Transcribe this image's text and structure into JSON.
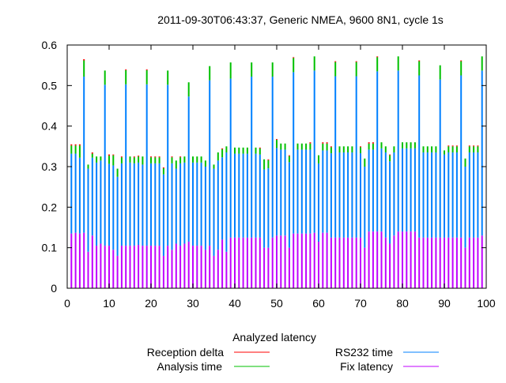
{
  "chart_data": {
    "type": "bar",
    "stacked": true,
    "title": "2011-09-30T06:43:37, Generic NMEA, 9600 8N1, cycle 1s",
    "xlabel": "",
    "ylabel": "",
    "xlim": [
      0,
      100
    ],
    "ylim": [
      0,
      0.6
    ],
    "x_ticks": [
      "0",
      "10",
      "20",
      "30",
      "40",
      "50",
      "60",
      "70",
      "80",
      "90",
      "100"
    ],
    "y_ticks": [
      "0",
      "0.1",
      "0.2",
      "0.3",
      "0.4",
      "0.5",
      "0.6"
    ],
    "grid": false,
    "legend_title": "Analyzed latency",
    "legend_placement": "bottom",
    "x": [
      1,
      2,
      3,
      4,
      5,
      6,
      7,
      8,
      9,
      10,
      11,
      12,
      13,
      14,
      15,
      16,
      17,
      18,
      19,
      20,
      21,
      22,
      23,
      24,
      25,
      26,
      27,
      28,
      29,
      30,
      31,
      32,
      33,
      34,
      35,
      36,
      37,
      38,
      39,
      40,
      41,
      42,
      43,
      44,
      45,
      46,
      47,
      48,
      49,
      50,
      51,
      52,
      53,
      54,
      55,
      56,
      57,
      58,
      59,
      60,
      61,
      62,
      63,
      64,
      65,
      66,
      67,
      68,
      69,
      70,
      71,
      72,
      73,
      74,
      75,
      76,
      77,
      78,
      79,
      80,
      81,
      82,
      83,
      84,
      85,
      86,
      87,
      88,
      89,
      90,
      91,
      92,
      93,
      94,
      95,
      96,
      97,
      98,
      99
    ],
    "series": [
      {
        "name": "Fix latency",
        "color": "#c000ff",
        "values": [
          0.135,
          0.137,
          0.135,
          0.137,
          0.09,
          0.13,
          0.105,
          0.11,
          0.105,
          0.105,
          0.095,
          0.08,
          0.105,
          0.105,
          0.105,
          0.105,
          0.107,
          0.105,
          0.105,
          0.105,
          0.105,
          0.105,
          0.08,
          0.105,
          0.095,
          0.11,
          0.105,
          0.11,
          0.115,
          0.105,
          0.105,
          0.105,
          0.095,
          0.105,
          0.08,
          0.095,
          0.12,
          0.09,
          0.125,
          0.125,
          0.125,
          0.125,
          0.125,
          0.125,
          0.125,
          0.125,
          0.1,
          0.1,
          0.125,
          0.13,
          0.13,
          0.13,
          0.1,
          0.135,
          0.135,
          0.135,
          0.135,
          0.135,
          0.137,
          0.115,
          0.137,
          0.137,
          0.125,
          0.125,
          0.125,
          0.125,
          0.125,
          0.125,
          0.125,
          0.125,
          0.1,
          0.14,
          0.14,
          0.14,
          0.14,
          0.125,
          0.11,
          0.13,
          0.14,
          0.14,
          0.14,
          0.14,
          0.14,
          0.125,
          0.125,
          0.125,
          0.125,
          0.125,
          0.125,
          0.125,
          0.125,
          0.125,
          0.125,
          0.125,
          0.1,
          0.125,
          0.125,
          0.125,
          0.13
        ]
      },
      {
        "name": "RS232 time",
        "color": "#0080ff",
        "values": [
          0.197,
          0.195,
          0.187,
          0.385,
          0.205,
          0.192,
          0.205,
          0.205,
          0.397,
          0.202,
          0.208,
          0.195,
          0.203,
          0.398,
          0.205,
          0.203,
          0.203,
          0.2,
          0.398,
          0.203,
          0.203,
          0.203,
          0.201,
          0.397,
          0.213,
          0.185,
          0.203,
          0.2,
          0.358,
          0.205,
          0.205,
          0.205,
          0.205,
          0.408,
          0.215,
          0.22,
          0.203,
          0.245,
          0.392,
          0.207,
          0.207,
          0.207,
          0.207,
          0.397,
          0.207,
          0.205,
          0.193,
          0.196,
          0.397,
          0.216,
          0.212,
          0.212,
          0.211,
          0.398,
          0.207,
          0.207,
          0.207,
          0.207,
          0.4,
          0.193,
          0.203,
          0.203,
          0.208,
          0.398,
          0.21,
          0.21,
          0.21,
          0.21,
          0.398,
          0.208,
          0.2,
          0.202,
          0.202,
          0.395,
          0.205,
          0.21,
          0.203,
          0.205,
          0.397,
          0.205,
          0.205,
          0.205,
          0.205,
          0.4,
          0.21,
          0.21,
          0.21,
          0.21,
          0.39,
          0.205,
          0.21,
          0.21,
          0.21,
          0.4,
          0.2,
          0.21,
          0.21,
          0.21,
          0.407
        ]
      },
      {
        "name": "Analysis time",
        "color": "#00c000",
        "values": [
          0.02,
          0.02,
          0.03,
          0.04,
          0.01,
          0.01,
          0.015,
          0.01,
          0.035,
          0.02,
          0.025,
          0.02,
          0.015,
          0.035,
          0.015,
          0.015,
          0.015,
          0.02,
          0.035,
          0.015,
          0.015,
          0.015,
          0.015,
          0.035,
          0.015,
          0.02,
          0.015,
          0.015,
          0.035,
          0.015,
          0.015,
          0.015,
          0.015,
          0.035,
          0.01,
          0.02,
          0.02,
          0.015,
          0.04,
          0.015,
          0.015,
          0.015,
          0.015,
          0.035,
          0.015,
          0.015,
          0.025,
          0.02,
          0.035,
          0.02,
          0.015,
          0.015,
          0.015,
          0.035,
          0.015,
          0.015,
          0.015,
          0.015,
          0.035,
          0.02,
          0.017,
          0.017,
          0.015,
          0.035,
          0.015,
          0.015,
          0.015,
          0.015,
          0.035,
          0.015,
          0.02,
          0.015,
          0.015,
          0.035,
          0.015,
          0.015,
          0.015,
          0.015,
          0.035,
          0.015,
          0.015,
          0.015,
          0.015,
          0.035,
          0.015,
          0.015,
          0.015,
          0.015,
          0.035,
          0.01,
          0.015,
          0.015,
          0.015,
          0.035,
          0.02,
          0.015,
          0.015,
          0.015,
          0.035
        ]
      },
      {
        "name": "Reception delta",
        "color": "#ff0000",
        "values": [
          0.003,
          0.003,
          0.003,
          0.003,
          0,
          0.003,
          0,
          0,
          0,
          0.003,
          0.002,
          0,
          0.002,
          0.002,
          0,
          0.002,
          0.002,
          0,
          0.002,
          0.002,
          0.002,
          0.002,
          0.002,
          0,
          0.002,
          0,
          0.002,
          0,
          0,
          0,
          0,
          0,
          0,
          0,
          0,
          0,
          0.002,
          0,
          0,
          0,
          0,
          0,
          0,
          0,
          0,
          0.002,
          0,
          0.002,
          0,
          0.002,
          0,
          0,
          0.002,
          0.002,
          0,
          0,
          0,
          0.003,
          0,
          0,
          0.003,
          0.003,
          0.002,
          0.002,
          0,
          0,
          0,
          0,
          0.002,
          0.002,
          0,
          0.003,
          0.003,
          0.002,
          0,
          0,
          0.002,
          0,
          0,
          0,
          0,
          0,
          0,
          0.002,
          0,
          0,
          0,
          0,
          0,
          0,
          0.002,
          0.002,
          0.002,
          0.002,
          0,
          0.002,
          0.002,
          0.002,
          0
        ]
      }
    ],
    "legend": [
      {
        "label": "Reception delta",
        "color": "#ff0000"
      },
      {
        "label": "RS232 time",
        "color": "#0080ff"
      },
      {
        "label": "Analysis time",
        "color": "#00c000"
      },
      {
        "label": "Fix latency",
        "color": "#c000ff"
      }
    ]
  }
}
